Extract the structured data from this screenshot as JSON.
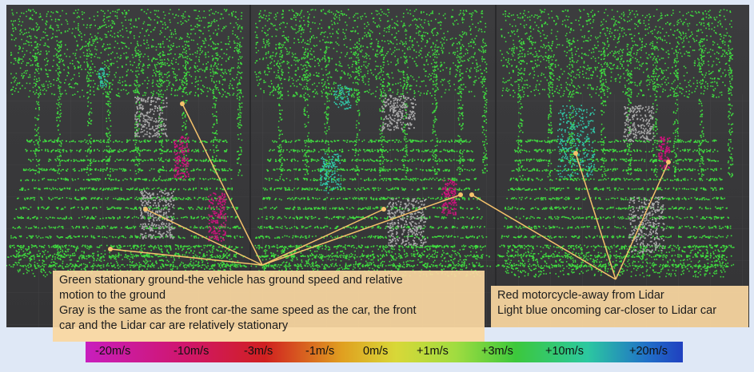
{
  "annotations": {
    "left_lines": [
      "Green stationary ground-the vehicle has ground speed and relative",
      "motion to the ground",
      "Gray is the same as the front car-the same speed as the car, the front",
      "car and the Lidar car are relatively stationary"
    ],
    "right_lines": [
      "Red motorcycle-away from Lidar",
      "Light blue oncoming car-closer to Lidar car"
    ]
  },
  "velocity_scale": {
    "labels": [
      "-20m/s",
      "-10m/s",
      "-3m/s",
      "-1m/s",
      "0m/s",
      "+1m/s",
      "+3m/s",
      "+10m/s",
      "+20m/s"
    ]
  },
  "colors": {
    "ground_points": "#3fdc3f",
    "front_car_points": "#a8a8a8",
    "motorcycle_points": "#c8147a",
    "oncoming_car_points": "#30c8a8",
    "leader_line": "#f5c26b",
    "background": "#3a3a3c"
  }
}
